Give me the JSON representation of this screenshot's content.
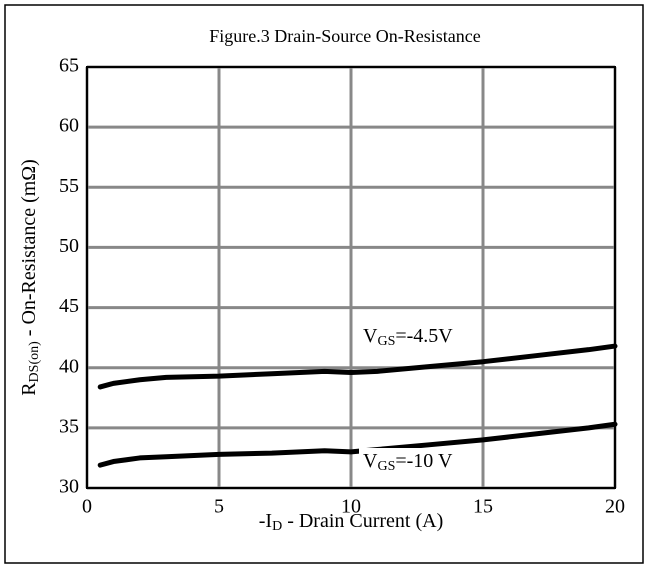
{
  "chart_data": {
    "type": "line",
    "title": "Figure.3 Drain-Source On-Resistance",
    "xlabel": [
      "-I",
      "D",
      " - Drain Current (A)"
    ],
    "ylabel": [
      "R",
      "DS(on)",
      " - On-Resistance (mΩ)"
    ],
    "x": [
      0.5,
      1,
      2,
      3,
      5,
      7,
      9,
      10,
      11,
      13,
      15,
      17,
      19,
      20
    ],
    "series": [
      {
        "color": "#000000",
        "values": [
          38.4,
          38.7,
          39.0,
          39.2,
          39.3,
          39.5,
          39.7,
          39.6,
          39.7,
          40.1,
          40.5,
          41.0,
          41.5,
          41.8
        ]
      },
      {
        "color": "#000000",
        "values": [
          31.9,
          32.2,
          32.5,
          32.6,
          32.8,
          32.9,
          33.1,
          33.0,
          33.2,
          33.6,
          34.0,
          34.5,
          35.0,
          35.3
        ]
      }
    ],
    "annotations": [
      [
        "V",
        "GS",
        "=-4.5V"
      ],
      [
        "V",
        "GS",
        "=-10 V"
      ]
    ],
    "xlim": [
      0,
      20
    ],
    "xticks": [
      0,
      5,
      10,
      15,
      20
    ],
    "ylim": [
      30,
      65
    ],
    "yticks": [
      30,
      35,
      40,
      45,
      50,
      55,
      60,
      65
    ],
    "grid": true
  }
}
